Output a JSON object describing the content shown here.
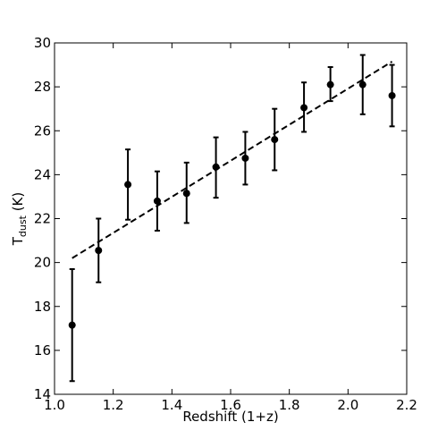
{
  "chart_data": {
    "type": "scatter",
    "xlabel": "Redshift (1+z)",
    "ylabel_main": "T",
    "ylabel_sub": "dust",
    "ylabel_unit": " (K)",
    "xlim": [
      1.0,
      2.2
    ],
    "ylim": [
      14,
      30
    ],
    "xticks": [
      "1.0",
      "1.2",
      "1.4",
      "1.6",
      "1.8",
      "2.0",
      "2.2"
    ],
    "yticks": [
      "14",
      "16",
      "18",
      "20",
      "22",
      "24",
      "26",
      "28",
      "30"
    ],
    "grid": false,
    "points": [
      {
        "x": 1.06,
        "y": 17.15,
        "ylow": 14.6,
        "yhigh": 19.7
      },
      {
        "x": 1.15,
        "y": 20.55,
        "ylow": 19.1,
        "yhigh": 22.0
      },
      {
        "x": 1.25,
        "y": 23.55,
        "ylow": 21.95,
        "yhigh": 25.15
      },
      {
        "x": 1.35,
        "y": 22.8,
        "ylow": 21.45,
        "yhigh": 24.15
      },
      {
        "x": 1.45,
        "y": 23.15,
        "ylow": 21.8,
        "yhigh": 24.55
      },
      {
        "x": 1.55,
        "y": 24.35,
        "ylow": 22.95,
        "yhigh": 25.7
      },
      {
        "x": 1.65,
        "y": 24.75,
        "ylow": 23.55,
        "yhigh": 25.95
      },
      {
        "x": 1.75,
        "y": 25.6,
        "ylow": 24.2,
        "yhigh": 27.0
      },
      {
        "x": 1.85,
        "y": 27.05,
        "ylow": 25.95,
        "yhigh": 28.2
      },
      {
        "x": 1.94,
        "y": 28.1,
        "ylow": 27.35,
        "yhigh": 28.9
      },
      {
        "x": 2.05,
        "y": 28.1,
        "ylow": 26.75,
        "yhigh": 29.45
      },
      {
        "x": 2.15,
        "y": 27.6,
        "ylow": 26.2,
        "yhigh": 29.0
      }
    ],
    "fit_line": {
      "style": "dashed",
      "x": [
        1.06,
        2.15
      ],
      "y": [
        20.2,
        29.15
      ]
    }
  }
}
